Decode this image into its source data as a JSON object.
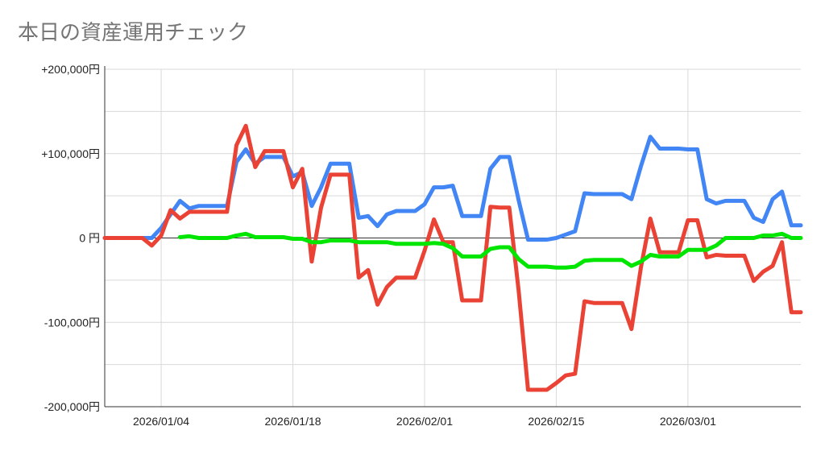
{
  "chart_data": {
    "type": "line",
    "title": "本日の資産運用チェック",
    "xlabel": "",
    "ylabel": "",
    "x_start": "2025-12-29",
    "x_end": "2026-03-13",
    "ylim": [
      -200000,
      200000
    ],
    "y_ticks": [
      {
        "value": 200000,
        "label": "+200,000円"
      },
      {
        "value": 100000,
        "label": "+100,000円"
      },
      {
        "value": 0,
        "label": "0 円"
      },
      {
        "value": -100000,
        "label": "-100,000円"
      },
      {
        "value": -200000,
        "label": "-200,000円"
      }
    ],
    "x_ticks": [
      "2026/01/04",
      "2026/01/18",
      "2026/02/01",
      "2026/02/15",
      "2026/03/01"
    ],
    "grid": true,
    "legend": "none",
    "series": [
      {
        "color": "#4285f4",
        "points": [
          [
            "2025-12-29",
            0
          ],
          [
            "2025-12-30",
            0
          ],
          [
            "2025-12-31",
            0
          ],
          [
            "2026-01-01",
            0
          ],
          [
            "2026-01-02",
            0
          ],
          [
            "2026-01-03",
            0
          ],
          [
            "2026-01-04",
            12000
          ],
          [
            "2026-01-05",
            28000
          ],
          [
            "2026-01-06",
            44000
          ],
          [
            "2026-01-07",
            35000
          ],
          [
            "2026-01-08",
            38000
          ],
          [
            "2026-01-09",
            38000
          ],
          [
            "2026-01-10",
            38000
          ],
          [
            "2026-01-11",
            38000
          ],
          [
            "2026-01-12",
            90000
          ],
          [
            "2026-01-13",
            105000
          ],
          [
            "2026-01-14",
            88000
          ],
          [
            "2026-01-15",
            96000
          ],
          [
            "2026-01-16",
            96000
          ],
          [
            "2026-01-17",
            96000
          ],
          [
            "2026-01-18",
            73000
          ],
          [
            "2026-01-19",
            78000
          ],
          [
            "2026-01-20",
            38000
          ],
          [
            "2026-01-21",
            60000
          ],
          [
            "2026-01-22",
            88000
          ],
          [
            "2026-01-23",
            88000
          ],
          [
            "2026-01-24",
            88000
          ],
          [
            "2026-01-25",
            24000
          ],
          [
            "2026-01-26",
            26000
          ],
          [
            "2026-01-27",
            14000
          ],
          [
            "2026-01-28",
            28000
          ],
          [
            "2026-01-29",
            32000
          ],
          [
            "2026-01-30",
            32000
          ],
          [
            "2026-01-31",
            32000
          ],
          [
            "2026-02-01",
            40000
          ],
          [
            "2026-02-02",
            60000
          ],
          [
            "2026-02-03",
            60000
          ],
          [
            "2026-02-04",
            62000
          ],
          [
            "2026-02-05",
            26000
          ],
          [
            "2026-02-06",
            26000
          ],
          [
            "2026-02-07",
            26000
          ],
          [
            "2026-02-08",
            82000
          ],
          [
            "2026-02-09",
            96000
          ],
          [
            "2026-02-10",
            96000
          ],
          [
            "2026-02-11",
            45000
          ],
          [
            "2026-02-12",
            -2000
          ],
          [
            "2026-02-13",
            -2000
          ],
          [
            "2026-02-14",
            -2000
          ],
          [
            "2026-02-15",
            0
          ],
          [
            "2026-02-16",
            4000
          ],
          [
            "2026-02-17",
            8000
          ],
          [
            "2026-02-18",
            53000
          ],
          [
            "2026-02-19",
            52000
          ],
          [
            "2026-02-20",
            52000
          ],
          [
            "2026-02-21",
            52000
          ],
          [
            "2026-02-22",
            52000
          ],
          [
            "2026-02-23",
            46000
          ],
          [
            "2026-02-24",
            85000
          ],
          [
            "2026-02-25",
            120000
          ],
          [
            "2026-02-26",
            106000
          ],
          [
            "2026-02-27",
            106000
          ],
          [
            "2026-02-28",
            106000
          ],
          [
            "2026-03-01",
            105000
          ],
          [
            "2026-03-02",
            105000
          ],
          [
            "2026-03-03",
            46000
          ],
          [
            "2026-03-04",
            41000
          ],
          [
            "2026-03-05",
            44000
          ],
          [
            "2026-03-06",
            44000
          ],
          [
            "2026-03-07",
            44000
          ],
          [
            "2026-03-08",
            24000
          ],
          [
            "2026-03-09",
            19000
          ],
          [
            "2026-03-10",
            46000
          ],
          [
            "2026-03-11",
            55000
          ],
          [
            "2026-03-12",
            15000
          ],
          [
            "2026-03-13",
            15000
          ]
        ]
      },
      {
        "color": "#ea4335",
        "points": [
          [
            "2025-12-29",
            0
          ],
          [
            "2025-12-30",
            0
          ],
          [
            "2025-12-31",
            0
          ],
          [
            "2026-01-01",
            0
          ],
          [
            "2026-01-02",
            0
          ],
          [
            "2026-01-03",
            -9000
          ],
          [
            "2026-01-04",
            3000
          ],
          [
            "2026-01-05",
            33000
          ],
          [
            "2026-01-06",
            23000
          ],
          [
            "2026-01-07",
            31000
          ],
          [
            "2026-01-08",
            31000
          ],
          [
            "2026-01-09",
            31000
          ],
          [
            "2026-01-10",
            31000
          ],
          [
            "2026-01-11",
            31000
          ],
          [
            "2026-01-12",
            110000
          ],
          [
            "2026-01-13",
            133000
          ],
          [
            "2026-01-14",
            84000
          ],
          [
            "2026-01-15",
            103000
          ],
          [
            "2026-01-16",
            103000
          ],
          [
            "2026-01-17",
            103000
          ],
          [
            "2026-01-18",
            60000
          ],
          [
            "2026-01-19",
            82000
          ],
          [
            "2026-01-20",
            -28000
          ],
          [
            "2026-01-21",
            36000
          ],
          [
            "2026-01-22",
            75000
          ],
          [
            "2026-01-23",
            75000
          ],
          [
            "2026-01-24",
            75000
          ],
          [
            "2026-01-25",
            -47000
          ],
          [
            "2026-01-26",
            -38000
          ],
          [
            "2026-01-27",
            -79000
          ],
          [
            "2026-01-28",
            -58000
          ],
          [
            "2026-01-29",
            -47000
          ],
          [
            "2026-01-30",
            -47000
          ],
          [
            "2026-01-31",
            -47000
          ],
          [
            "2026-02-01",
            -15000
          ],
          [
            "2026-02-02",
            22000
          ],
          [
            "2026-02-03",
            -5000
          ],
          [
            "2026-02-04",
            -5000
          ],
          [
            "2026-02-05",
            -74000
          ],
          [
            "2026-02-06",
            -74000
          ],
          [
            "2026-02-07",
            -74000
          ],
          [
            "2026-02-08",
            37000
          ],
          [
            "2026-02-09",
            36000
          ],
          [
            "2026-02-10",
            36000
          ],
          [
            "2026-02-11",
            -62000
          ],
          [
            "2026-02-12",
            -180000
          ],
          [
            "2026-02-13",
            -180000
          ],
          [
            "2026-02-14",
            -180000
          ],
          [
            "2026-02-15",
            -172000
          ],
          [
            "2026-02-16",
            -163000
          ],
          [
            "2026-02-17",
            -161000
          ],
          [
            "2026-02-18",
            -75000
          ],
          [
            "2026-02-19",
            -77000
          ],
          [
            "2026-02-20",
            -77000
          ],
          [
            "2026-02-21",
            -77000
          ],
          [
            "2026-02-22",
            -77000
          ],
          [
            "2026-02-23",
            -108000
          ],
          [
            "2026-02-24",
            -35000
          ],
          [
            "2026-02-25",
            23000
          ],
          [
            "2026-02-26",
            -17000
          ],
          [
            "2026-02-27",
            -17000
          ],
          [
            "2026-02-28",
            -17000
          ],
          [
            "2026-03-01",
            21000
          ],
          [
            "2026-03-02",
            21000
          ],
          [
            "2026-03-03",
            -23000
          ],
          [
            "2026-03-04",
            -20000
          ],
          [
            "2026-03-05",
            -21000
          ],
          [
            "2026-03-06",
            -21000
          ],
          [
            "2026-03-07",
            -21000
          ],
          [
            "2026-03-08",
            -51000
          ],
          [
            "2026-03-09",
            -40000
          ],
          [
            "2026-03-10",
            -33000
          ],
          [
            "2026-03-11",
            -5000
          ],
          [
            "2026-03-12",
            -88000
          ],
          [
            "2026-03-13",
            -88000
          ]
        ]
      },
      {
        "color": "#00e600",
        "points": [
          [
            "2026-01-06",
            1000
          ],
          [
            "2026-01-07",
            2000
          ],
          [
            "2026-01-08",
            0
          ],
          [
            "2026-01-09",
            0
          ],
          [
            "2026-01-10",
            0
          ],
          [
            "2026-01-11",
            0
          ],
          [
            "2026-01-12",
            3000
          ],
          [
            "2026-01-13",
            5000
          ],
          [
            "2026-01-14",
            1000
          ],
          [
            "2026-01-15",
            1000
          ],
          [
            "2026-01-16",
            1000
          ],
          [
            "2026-01-17",
            1000
          ],
          [
            "2026-01-18",
            -1000
          ],
          [
            "2026-01-19",
            -1000
          ],
          [
            "2026-01-20",
            -5000
          ],
          [
            "2026-01-21",
            -5000
          ],
          [
            "2026-01-22",
            -3000
          ],
          [
            "2026-01-23",
            -3000
          ],
          [
            "2026-01-24",
            -3000
          ],
          [
            "2026-01-25",
            -5000
          ],
          [
            "2026-01-26",
            -5000
          ],
          [
            "2026-01-27",
            -5000
          ],
          [
            "2026-01-28",
            -5000
          ],
          [
            "2026-01-29",
            -7000
          ],
          [
            "2026-01-30",
            -7000
          ],
          [
            "2026-01-31",
            -7000
          ],
          [
            "2026-02-01",
            -7000
          ],
          [
            "2026-02-02",
            -6000
          ],
          [
            "2026-02-03",
            -7000
          ],
          [
            "2026-02-04",
            -12000
          ],
          [
            "2026-02-05",
            -22000
          ],
          [
            "2026-02-06",
            -22000
          ],
          [
            "2026-02-07",
            -22000
          ],
          [
            "2026-02-08",
            -13000
          ],
          [
            "2026-02-09",
            -11000
          ],
          [
            "2026-02-10",
            -11000
          ],
          [
            "2026-02-11",
            -25000
          ],
          [
            "2026-02-12",
            -34000
          ],
          [
            "2026-02-13",
            -34000
          ],
          [
            "2026-02-14",
            -34000
          ],
          [
            "2026-02-15",
            -35000
          ],
          [
            "2026-02-16",
            -35000
          ],
          [
            "2026-02-17",
            -34000
          ],
          [
            "2026-02-18",
            -27000
          ],
          [
            "2026-02-19",
            -26000
          ],
          [
            "2026-02-20",
            -26000
          ],
          [
            "2026-02-21",
            -26000
          ],
          [
            "2026-02-22",
            -26000
          ],
          [
            "2026-02-23",
            -33000
          ],
          [
            "2026-02-24",
            -28000
          ],
          [
            "2026-02-25",
            -20000
          ],
          [
            "2026-02-26",
            -22000
          ],
          [
            "2026-02-27",
            -22000
          ],
          [
            "2026-02-28",
            -22000
          ],
          [
            "2026-03-01",
            -14000
          ],
          [
            "2026-03-02",
            -14000
          ],
          [
            "2026-03-03",
            -14000
          ],
          [
            "2026-03-04",
            -9000
          ],
          [
            "2026-03-05",
            0
          ],
          [
            "2026-03-06",
            0
          ],
          [
            "2026-03-07",
            0
          ],
          [
            "2026-03-08",
            0
          ],
          [
            "2026-03-09",
            3000
          ],
          [
            "2026-03-10",
            3000
          ],
          [
            "2026-03-11",
            5000
          ],
          [
            "2026-03-12",
            0
          ],
          [
            "2026-03-13",
            0
          ]
        ]
      }
    ]
  }
}
